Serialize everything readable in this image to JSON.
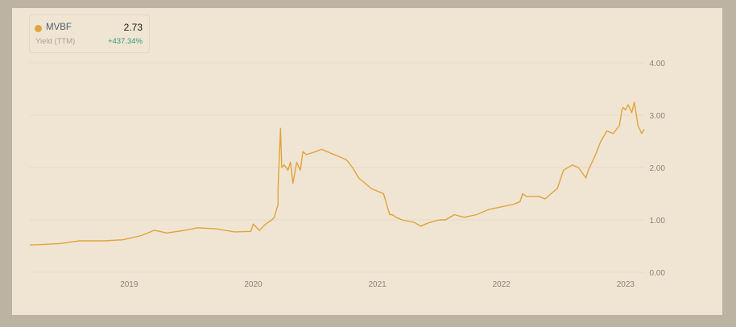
{
  "legend": {
    "ticker": "MVBF",
    "value": "2.73",
    "metric": "Yield (TTM)",
    "change": "+437.34%"
  },
  "colors": {
    "series": "#e2a33d",
    "positive": "#2e9c7f",
    "grid": "#e4dac6"
  },
  "chart_data": {
    "type": "line",
    "title": "",
    "xlabel": "",
    "ylabel": "",
    "ylim": [
      0,
      4
    ],
    "yticks": [
      "0.00",
      "1.00",
      "2.00",
      "3.00",
      "4.00"
    ],
    "xticks": [
      "2019",
      "2020",
      "2021",
      "2022",
      "2023"
    ],
    "xlim": [
      2018.2,
      2023.15
    ],
    "grid": true,
    "series": [
      {
        "name": "MVBF",
        "x": [
          2018.2,
          2018.3,
          2018.45,
          2018.6,
          2018.8,
          2018.95,
          2019.1,
          2019.2,
          2019.25,
          2019.3,
          2019.45,
          2019.55,
          2019.7,
          2019.85,
          2019.98,
          2020.0,
          2020.05,
          2020.1,
          2020.15,
          2020.17,
          2020.2,
          2020.2,
          2020.22,
          2020.23,
          2020.25,
          2020.28,
          2020.3,
          2020.32,
          2020.35,
          2020.38,
          2020.4,
          2020.43,
          2020.5,
          2020.55,
          2020.6,
          2020.65,
          2020.7,
          2020.75,
          2020.8,
          2020.85,
          2020.9,
          2020.95,
          2021.0,
          2021.05,
          2021.1,
          2021.12,
          2021.15,
          2021.2,
          2021.3,
          2021.35,
          2021.42,
          2021.5,
          2021.55,
          2021.62,
          2021.7,
          2021.8,
          2021.9,
          2022.0,
          2022.1,
          2022.15,
          2022.17,
          2022.2,
          2022.3,
          2022.35,
          2022.45,
          2022.5,
          2022.57,
          2022.62,
          2022.65,
          2022.68,
          2022.7,
          2022.75,
          2022.8,
          2022.85,
          2022.9,
          2022.95,
          2022.97,
          2022.98,
          2023.0,
          2023.02,
          2023.05,
          2023.07,
          2023.1,
          2023.13,
          2023.15
        ],
        "y": [
          0.52,
          0.53,
          0.55,
          0.6,
          0.6,
          0.62,
          0.7,
          0.8,
          0.78,
          0.75,
          0.8,
          0.85,
          0.83,
          0.77,
          0.78,
          0.92,
          0.8,
          0.92,
          1.0,
          1.05,
          1.3,
          1.6,
          2.75,
          2.0,
          2.05,
          1.95,
          2.1,
          1.7,
          2.1,
          1.95,
          2.3,
          2.25,
          2.3,
          2.35,
          2.3,
          2.25,
          2.2,
          2.15,
          2.0,
          1.8,
          1.7,
          1.6,
          1.55,
          1.5,
          1.1,
          1.1,
          1.05,
          1.0,
          0.95,
          0.88,
          0.95,
          1.0,
          1.0,
          1.1,
          1.05,
          1.1,
          1.2,
          1.25,
          1.3,
          1.35,
          1.5,
          1.45,
          1.45,
          1.4,
          1.6,
          1.95,
          2.05,
          2.0,
          1.9,
          1.8,
          1.95,
          2.2,
          2.5,
          2.7,
          2.65,
          2.8,
          3.1,
          3.15,
          3.1,
          3.2,
          3.05,
          3.25,
          2.8,
          2.65,
          2.73
        ]
      }
    ]
  }
}
